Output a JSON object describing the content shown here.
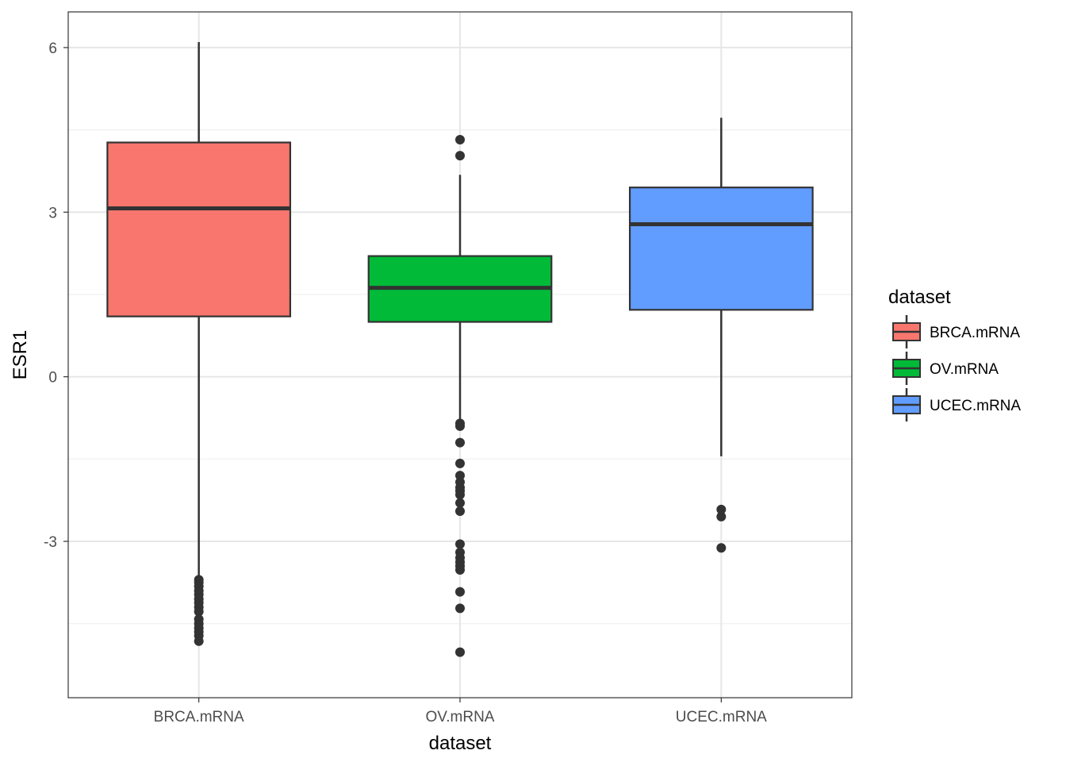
{
  "chart_data": {
    "type": "boxplot",
    "xlabel": "dataset",
    "ylabel": "ESR1",
    "ylim": [
      -5.85,
      6.65
    ],
    "y_ticks": [
      -3,
      0,
      3,
      6
    ],
    "y_minor_ticks": [
      -4.5,
      -1.5,
      1.5,
      4.5
    ],
    "grid": true,
    "legend": {
      "title": "dataset",
      "position": "right"
    },
    "categories": [
      "BRCA.mRNA",
      "OV.mRNA",
      "UCEC.mRNA"
    ],
    "series": [
      {
        "name": "BRCA.mRNA",
        "color": "#F8766D",
        "stats": {
          "whisker_low": -3.7,
          "q1": 1.1,
          "median": 3.07,
          "q3": 4.27,
          "whisker_high": 6.1
        },
        "outliers": [
          -3.7,
          -3.75,
          -3.82,
          -3.9,
          -3.97,
          -4.05,
          -4.12,
          -4.2,
          -4.28,
          -4.42,
          -4.5,
          -4.58,
          -4.65,
          -4.72,
          -4.82
        ]
      },
      {
        "name": "OV.mRNA",
        "color": "#00BA38",
        "stats": {
          "whisker_low": -0.82,
          "q1": 1.0,
          "median": 1.62,
          "q3": 2.2,
          "whisker_high": 3.68
        },
        "outliers": [
          4.32,
          4.03,
          -0.85,
          -0.9,
          -1.2,
          -1.58,
          -1.8,
          -1.92,
          -2.02,
          -2.08,
          -2.15,
          -2.3,
          -2.45,
          -3.05,
          -3.2,
          -3.3,
          -3.38,
          -3.45,
          -3.52,
          -3.92,
          -4.22,
          -5.02
        ]
      },
      {
        "name": "UCEC.mRNA",
        "color": "#619CFF",
        "stats": {
          "whisker_low": -1.45,
          "q1": 1.22,
          "median": 2.78,
          "q3": 3.45,
          "whisker_high": 4.72
        },
        "outliers": [
          -2.42,
          -2.55,
          -3.12
        ]
      }
    ]
  }
}
